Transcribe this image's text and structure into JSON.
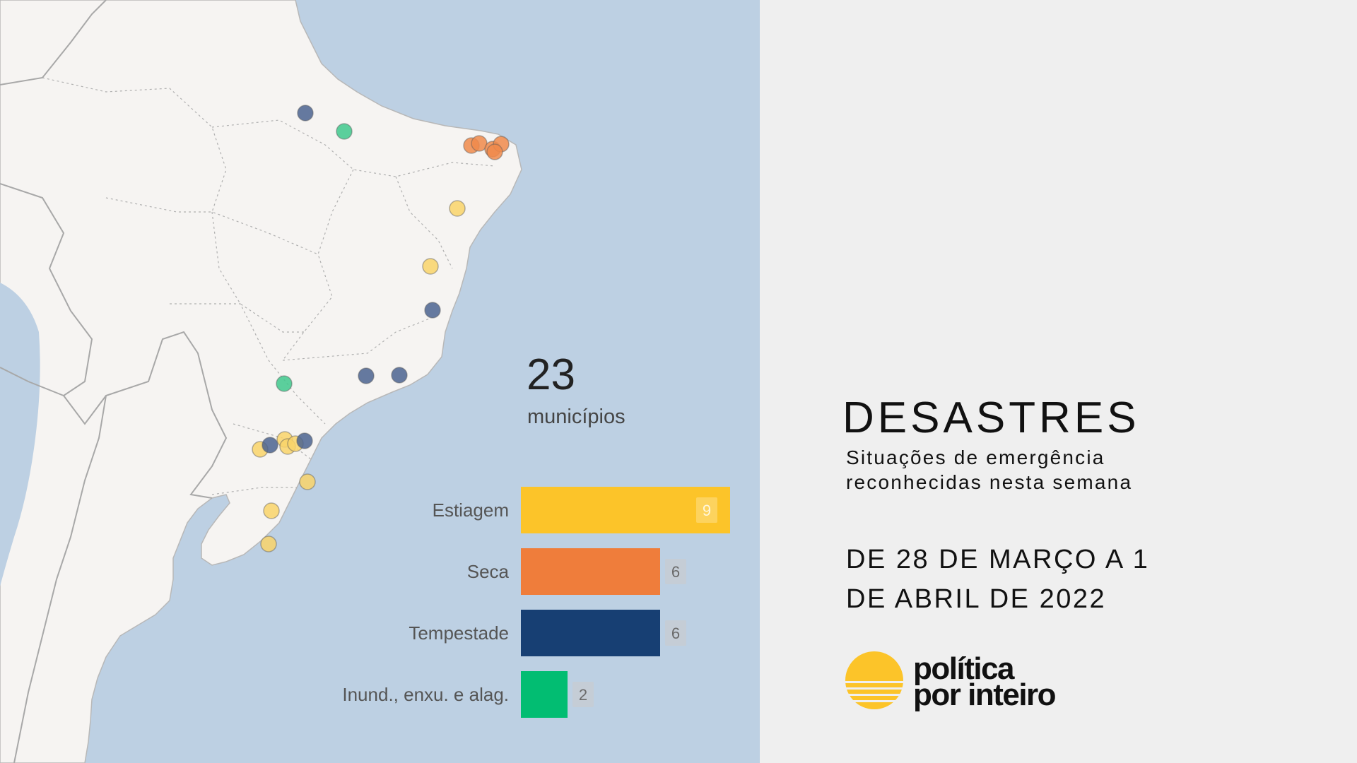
{
  "summary": {
    "count": "23",
    "label": "municípios"
  },
  "categories": [
    {
      "label": "Estiagem",
      "value": 9,
      "value_text": "9",
      "color": "#fcc429"
    },
    {
      "label": "Seca",
      "value": 6,
      "value_text": "6",
      "color": "#ef7d3b"
    },
    {
      "label": "Tempestade",
      "value": 6,
      "value_text": "6",
      "color": "#173f73"
    },
    {
      "label": "Inund., enxu. e alag.",
      "value": 2,
      "value_text": "2",
      "color": "#02bd72"
    }
  ],
  "map": {
    "land_color": "#f6f4f2",
    "water_color": "#bdd0e3",
    "marker_colors": {
      "estiagem": "#f9d46a",
      "seca": "#f08a4b",
      "tempestade": "#4b6391",
      "inundacao": "#3fc88d"
    }
  },
  "panel": {
    "title": "DESASTRES",
    "subtitle_line1": "Situações de emergência",
    "subtitle_line2": "reconhecidas nesta semana",
    "date_line1": "DE 28 DE MARÇO A 1",
    "date_line2": "DE ABRIL DE 2022"
  },
  "logo": {
    "line1": "política",
    "line2": "por inteiro",
    "color": "#fcc429"
  }
}
